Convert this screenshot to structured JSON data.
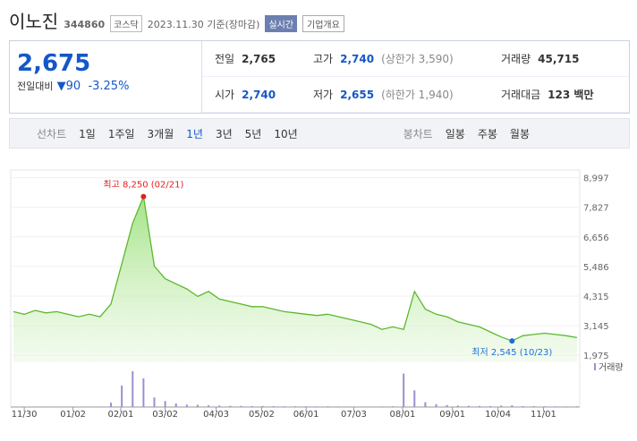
{
  "header": {
    "name": "이노진",
    "code": "344860",
    "market": "코스닥",
    "date": "2023.11.30 기준(장마감)",
    "realtime": "실시간",
    "company": "기업개요"
  },
  "summary": {
    "price": "2,675",
    "change_label": "전일대비",
    "change": "90",
    "rate": "-3.25%",
    "rows": [
      [
        {
          "label": "전일",
          "value": "2,765"
        },
        {
          "label": "고가",
          "value": "2,740",
          "note": "(상한가 3,590)"
        },
        {
          "label": "거래량",
          "value": "45,715"
        }
      ],
      [
        {
          "label": "시가",
          "value": "2,740"
        },
        {
          "label": "저가",
          "value": "2,655",
          "note": "(하한가 1,940)"
        },
        {
          "label": "거래대금",
          "value": "123 백만"
        }
      ]
    ]
  },
  "tabs": {
    "line_label": "선차트",
    "line": [
      "1일",
      "1주일",
      "3개월",
      "1년",
      "3년",
      "5년",
      "10년"
    ],
    "active": "1년",
    "candle_label": "봉차트",
    "candle": [
      "일봉",
      "주봉",
      "월봉"
    ]
  },
  "chart_data": {
    "type": "area",
    "color": "#5cb82e",
    "grid": true,
    "values": [
      3700,
      3600,
      3750,
      3650,
      3700,
      3600,
      3500,
      3600,
      3500,
      4000,
      5600,
      7200,
      8250,
      5500,
      5000,
      4800,
      4600,
      4300,
      4500,
      4200,
      4100,
      4000,
      3900,
      3900,
      3800,
      3700,
      3650,
      3600,
      3550,
      3600,
      3500,
      3400,
      3300,
      3200,
      3000,
      3100,
      3000,
      4500,
      3800,
      3600,
      3500,
      3300,
      3200,
      3100,
      2900,
      2700,
      2545,
      2750,
      2800,
      2850,
      2800,
      2750,
      2675
    ],
    "ylim": [
      1700,
      9300
    ],
    "yticks": [
      {
        "value": 1975,
        "label": "1,975"
      },
      {
        "value": 3145,
        "label": "3,145"
      },
      {
        "value": 4315,
        "label": "4,315"
      },
      {
        "value": 5486,
        "label": "5,486"
      },
      {
        "value": 6656,
        "label": "6,656"
      },
      {
        "value": 7827,
        "label": "7,827"
      },
      {
        "value": 8997,
        "label": "8,997"
      }
    ],
    "xlim": [
      0,
      52
    ],
    "xticks": [
      {
        "value": 1,
        "label": "11/30"
      },
      {
        "value": 5.5,
        "label": "01/02"
      },
      {
        "value": 9.9,
        "label": "02/01"
      },
      {
        "value": 14,
        "label": "03/02"
      },
      {
        "value": 18.7,
        "label": "04/03"
      },
      {
        "value": 22.9,
        "label": "05/02"
      },
      {
        "value": 27,
        "label": "06/01"
      },
      {
        "value": 31.4,
        "label": "07/03"
      },
      {
        "value": 35.9,
        "label": "08/01"
      },
      {
        "value": 40.5,
        "label": "09/01"
      },
      {
        "value": 44.7,
        "label": "10/04"
      },
      {
        "value": 48.9,
        "label": "11/01"
      }
    ],
    "high": {
      "label": "최고",
      "text": "8,250 (02/21)"
    },
    "low": {
      "label": "최저",
      "text": "2,545 (10/23)"
    },
    "volume_label": "거래량",
    "volume_color": "#9b8fd0",
    "volume": [
      20,
      15,
      18,
      12,
      14,
      10,
      12,
      15,
      20,
      180,
      900,
      1500,
      1200,
      400,
      250,
      150,
      100,
      90,
      70,
      60,
      50,
      45,
      40,
      40,
      35,
      30,
      30,
      28,
      25,
      30,
      25,
      22,
      20,
      20,
      25,
      30,
      1400,
      700,
      200,
      120,
      80,
      60,
      50,
      45,
      40,
      60,
      70,
      40,
      35,
      30,
      28,
      25,
      30
    ]
  }
}
